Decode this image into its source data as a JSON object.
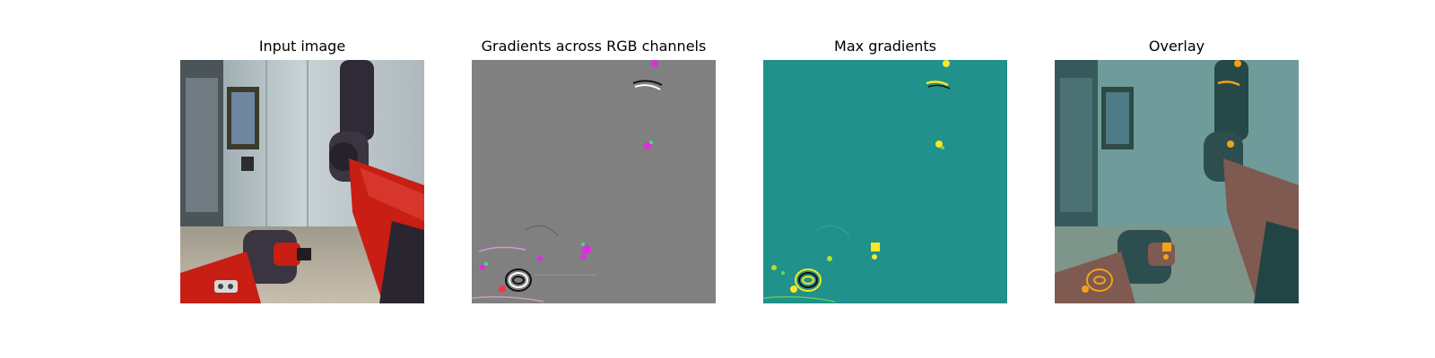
{
  "figure": {
    "panels": [
      {
        "title": "Input image"
      },
      {
        "title": "Gradients across RGB channels"
      },
      {
        "title": "Max gradients"
      },
      {
        "title": "Overlay"
      }
    ]
  },
  "colors": {
    "figure_background": "#ffffff",
    "gradient_neutral_gray": "#808080",
    "max_gradient_background": "#21918c",
    "max_gradient_hot": "#fde725",
    "gradient_magenta": "#e22ae0",
    "gradient_green": "#3ee08a",
    "robot_red": "#c81e14",
    "robot_dark": "#2e2a36",
    "overlay_tint": "#2a8a86"
  }
}
